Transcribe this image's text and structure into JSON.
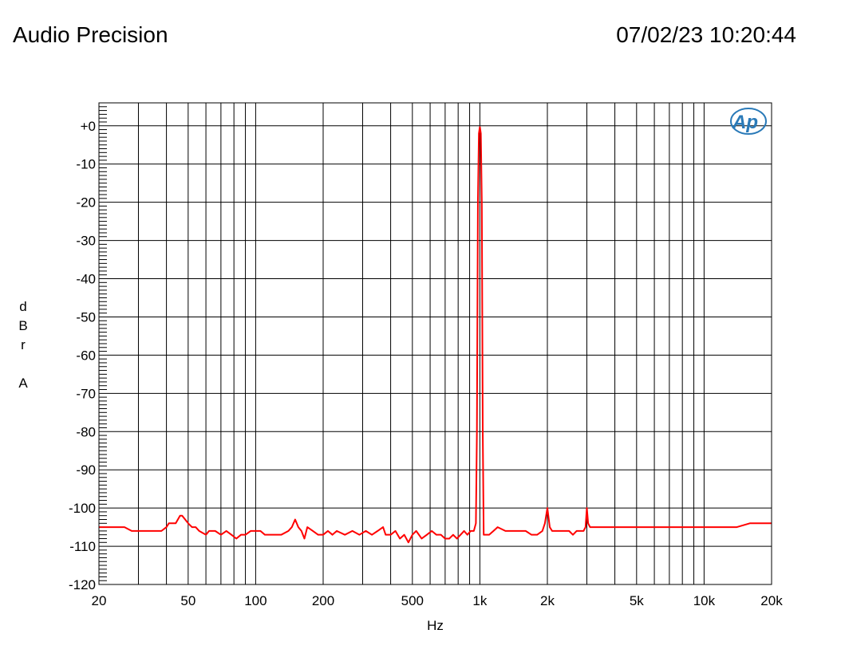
{
  "header": {
    "title": "Audio Precision",
    "timestamp": "07/02/23 10:20:44"
  },
  "logo": {
    "text": "Ap",
    "color": "#2a7ab8"
  },
  "colors": {
    "trace": "#ff0000",
    "grid": "#000000",
    "background": "#ffffff"
  },
  "chart_data": {
    "type": "line",
    "title": "",
    "xlabel": "Hz",
    "ylabel_chars": [
      "d",
      "B",
      "r",
      "",
      "A"
    ],
    "x_scale": "log",
    "xlim": [
      20,
      20000
    ],
    "ylim": [
      -120,
      6
    ],
    "grid": true,
    "x_ticks": [
      {
        "v": 20,
        "label": "20"
      },
      {
        "v": 50,
        "label": "50"
      },
      {
        "v": 100,
        "label": "100"
      },
      {
        "v": 200,
        "label": "200"
      },
      {
        "v": 500,
        "label": "500"
      },
      {
        "v": 1000,
        "label": "1k"
      },
      {
        "v": 2000,
        "label": "2k"
      },
      {
        "v": 5000,
        "label": "5k"
      },
      {
        "v": 10000,
        "label": "10k"
      },
      {
        "v": 20000,
        "label": "20k"
      }
    ],
    "y_ticks": [
      {
        "v": 0,
        "label": "+0"
      },
      {
        "v": -10,
        "label": "-10"
      },
      {
        "v": -20,
        "label": "-20"
      },
      {
        "v": -30,
        "label": "-30"
      },
      {
        "v": -40,
        "label": "-40"
      },
      {
        "v": -50,
        "label": "-50"
      },
      {
        "v": -60,
        "label": "-60"
      },
      {
        "v": -70,
        "label": "-70"
      },
      {
        "v": -80,
        "label": "-80"
      },
      {
        "v": -90,
        "label": "-90"
      },
      {
        "v": -100,
        "label": "-100"
      },
      {
        "v": -110,
        "label": "-110"
      },
      {
        "v": -120,
        "label": "-120"
      }
    ],
    "series": [
      {
        "color": "#ff0000",
        "x": [
          20,
          26,
          28,
          30,
          36,
          38,
          40,
          41,
          44,
          46,
          47,
          50,
          52,
          54,
          56,
          60,
          62,
          66,
          70,
          74,
          78,
          82,
          86,
          90,
          95,
          100,
          105,
          110,
          120,
          130,
          140,
          145,
          150,
          155,
          160,
          165,
          170,
          180,
          190,
          200,
          210,
          220,
          230,
          250,
          270,
          290,
          310,
          330,
          350,
          370,
          380,
          400,
          420,
          440,
          460,
          480,
          500,
          520,
          550,
          580,
          610,
          640,
          670,
          700,
          730,
          760,
          790,
          820,
          850,
          880,
          910,
          940,
          960,
          970,
          980,
          990,
          1000,
          1010,
          1020,
          1030,
          1040,
          1060,
          1100,
          1150,
          1200,
          1300,
          1400,
          1500,
          1600,
          1700,
          1800,
          1900,
          1950,
          2000,
          2050,
          2100,
          2200,
          2300,
          2400,
          2500,
          2600,
          2700,
          2800,
          2900,
          2960,
          3000,
          3040,
          3100,
          3300,
          3500,
          4000,
          4500,
          5000,
          6000,
          7000,
          8000,
          9000,
          10000,
          11000,
          12000,
          14000,
          16000,
          18000,
          20000
        ],
        "y": [
          -105,
          -105,
          -106,
          -106,
          -106,
          -106,
          -105,
          -104,
          -104,
          -102,
          -102,
          -104,
          -105,
          -105,
          -106,
          -107,
          -106,
          -106,
          -107,
          -106,
          -107,
          -108,
          -107,
          -107,
          -106,
          -106,
          -106,
          -107,
          -107,
          -107,
          -106,
          -105,
          -103,
          -105,
          -106,
          -108,
          -105,
          -106,
          -107,
          -107,
          -106,
          -107,
          -106,
          -107,
          -106,
          -107,
          -106,
          -107,
          -106,
          -105,
          -107,
          -107,
          -106,
          -108,
          -107,
          -109,
          -107,
          -106,
          -108,
          -107,
          -106,
          -107,
          -107,
          -108,
          -108,
          -107,
          -108,
          -107,
          -106,
          -107,
          -106,
          -106,
          -104,
          -80,
          -20,
          -2,
          -0.3,
          -2,
          -20,
          -80,
          -107,
          -107,
          -107,
          -106,
          -105,
          -106,
          -106,
          -106,
          -106,
          -107,
          -107,
          -106,
          -104,
          -100,
          -105,
          -106,
          -106,
          -106,
          -106,
          -106,
          -107,
          -106,
          -106,
          -106,
          -105,
          -100,
          -104,
          -105,
          -105,
          -105,
          -105,
          -105,
          -105,
          -105,
          -105,
          -105,
          -105,
          -105,
          -105,
          -105,
          -105,
          -104,
          -104,
          -104
        ]
      }
    ]
  }
}
